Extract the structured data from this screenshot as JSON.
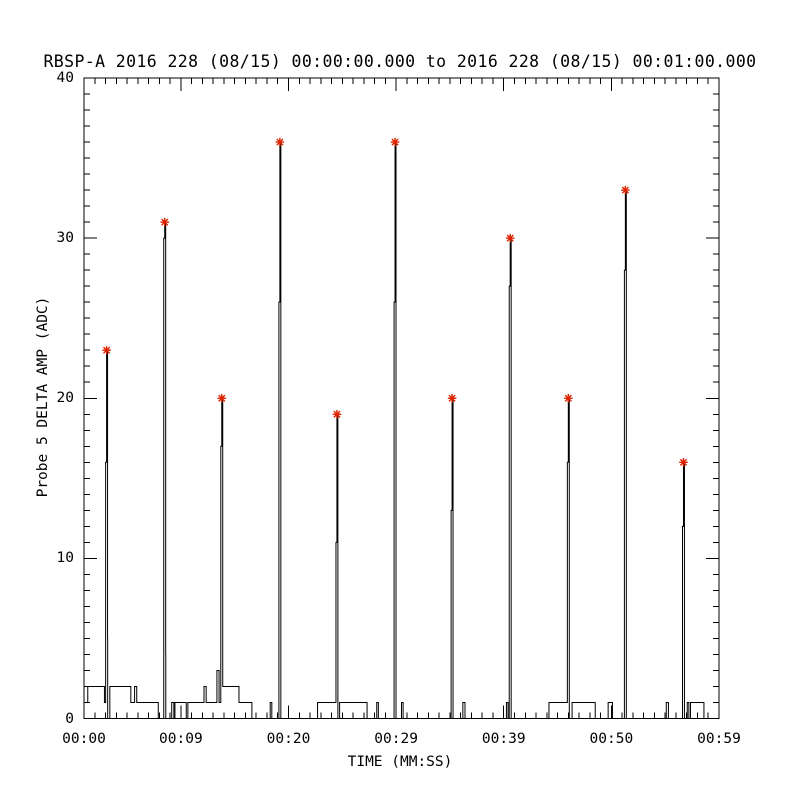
{
  "title": "RBSP-A 2016 228 (08/15) 00:00:00.000 to 2016 228 (08/15) 00:01:00.000",
  "chart_data": {
    "type": "line",
    "title": "RBSP-A 2016 228 (08/15) 00:00:00.000 to 2016 228 (08/15) 00:01:00.000",
    "xlabel": "TIME (MM:SS)",
    "ylabel": "Probe 5 DELTA AMP (ADC)",
    "xlim": [
      0,
      59
    ],
    "ylim": [
      0,
      40
    ],
    "grid": "off",
    "legend": "none",
    "x_ticks": [
      {
        "t": 0,
        "label": "00:00"
      },
      {
        "t": 9,
        "label": "00:09"
      },
      {
        "t": 19,
        "label": "00:20"
      },
      {
        "t": 29,
        "label": "00:29"
      },
      {
        "t": 39,
        "label": "00:39"
      },
      {
        "t": 49,
        "label": "00:50"
      },
      {
        "t": 59,
        "label": "00:59"
      }
    ],
    "y_ticks": [
      {
        "v": 0,
        "label": "0"
      },
      {
        "v": 10,
        "label": "10"
      },
      {
        "v": 20,
        "label": "20"
      },
      {
        "v": 30,
        "label": "30"
      },
      {
        "v": 40,
        "label": "40"
      }
    ],
    "x_minor_step": 1,
    "y_minor_step": 1,
    "line_color": "#000000",
    "marker_color": "#dd2200",
    "marker_style": "asterisk",
    "baseline_steps": [
      [
        0,
        1
      ],
      [
        0.35,
        2
      ],
      [
        1.9,
        1
      ],
      [
        2.2,
        0
      ],
      [
        2.4,
        2
      ],
      [
        4.35,
        1
      ],
      [
        4.7,
        2
      ],
      [
        4.9,
        1
      ],
      [
        6.9,
        0
      ],
      [
        7.6,
        0
      ],
      [
        8.15,
        1
      ],
      [
        8.35,
        0
      ],
      [
        8.45,
        1
      ],
      [
        9.5,
        0
      ],
      [
        9.65,
        1
      ],
      [
        11.15,
        2
      ],
      [
        11.35,
        1
      ],
      [
        12.35,
        3
      ],
      [
        12.55,
        1
      ],
      [
        12.9,
        2
      ],
      [
        14.4,
        1
      ],
      [
        15.6,
        0
      ],
      [
        17.3,
        1
      ],
      [
        17.45,
        0
      ],
      [
        18.3,
        0
      ],
      [
        21.7,
        1
      ],
      [
        23.6,
        0
      ],
      [
        23.75,
        1
      ],
      [
        26.3,
        0
      ],
      [
        27.2,
        1
      ],
      [
        27.35,
        0
      ],
      [
        29.0,
        0
      ],
      [
        29.5,
        1
      ],
      [
        29.65,
        0
      ],
      [
        34.3,
        0
      ],
      [
        35.2,
        1
      ],
      [
        35.4,
        0
      ],
      [
        39.25,
        1
      ],
      [
        39.4,
        0
      ],
      [
        39.7,
        0
      ],
      [
        43.2,
        1
      ],
      [
        45.1,
        0
      ],
      [
        45.35,
        1
      ],
      [
        47.5,
        0
      ],
      [
        48.7,
        1
      ],
      [
        49.1,
        0
      ],
      [
        50.4,
        0
      ],
      [
        54.1,
        1
      ],
      [
        54.3,
        0
      ],
      [
        55.8,
        0
      ],
      [
        56.05,
        1
      ],
      [
        56.2,
        0
      ],
      [
        56.35,
        1
      ],
      [
        57.6,
        0
      ],
      [
        59,
        0
      ]
    ],
    "spikes": [
      {
        "t": 2.1,
        "shoulder": 16,
        "peak": 23,
        "post": 5
      },
      {
        "t": 7.5,
        "shoulder": 30,
        "peak": 31,
        "post": 4
      },
      {
        "t": 12.8,
        "shoulder": 17,
        "peak": 20,
        "post": 2
      },
      {
        "t": 18.2,
        "shoulder": 26,
        "peak": 36,
        "post": 0
      },
      {
        "t": 23.5,
        "shoulder": 11,
        "peak": 19,
        "post": 0
      },
      {
        "t": 28.9,
        "shoulder": 26,
        "peak": 36,
        "post": 0
      },
      {
        "t": 34.2,
        "shoulder": 13,
        "peak": 20,
        "post": 0
      },
      {
        "t": 39.6,
        "shoulder": 27,
        "peak": 30,
        "post": 0
      },
      {
        "t": 45.0,
        "shoulder": 16,
        "peak": 20,
        "post": 0
      },
      {
        "t": 50.3,
        "shoulder": 28,
        "peak": 33,
        "post": 0
      },
      {
        "t": 55.7,
        "shoulder": 12,
        "peak": 16,
        "post": 0
      }
    ],
    "peak_values": [
      23,
      31,
      20,
      36,
      19,
      36,
      20,
      30,
      20,
      33,
      16
    ]
  }
}
